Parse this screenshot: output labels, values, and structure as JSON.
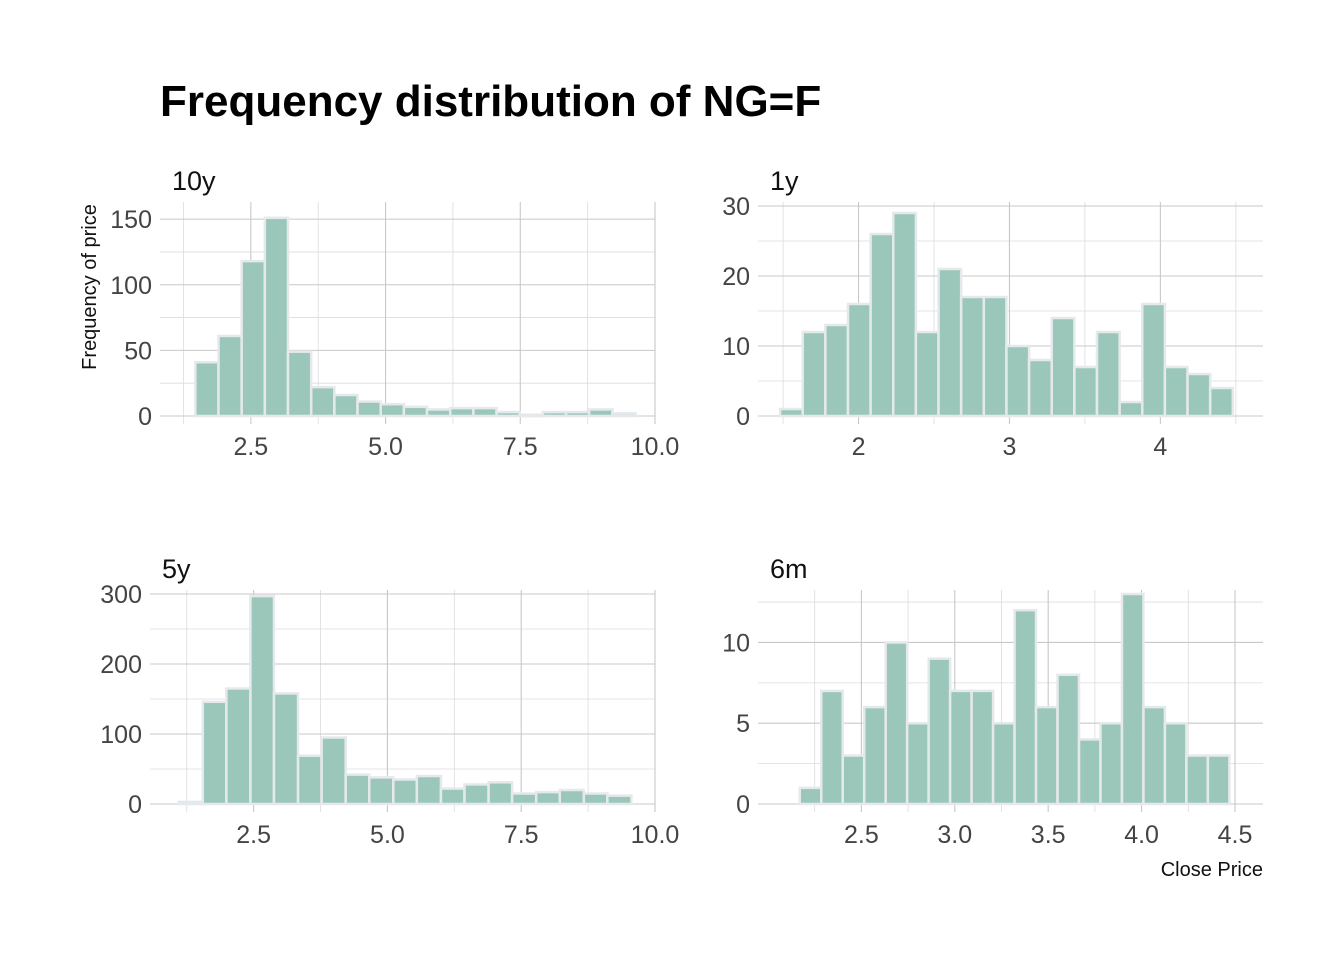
{
  "title": "Frequency distribution of NG=F",
  "ylabel": "Frequency of price",
  "xlabel": "Close Price",
  "colors": {
    "bar_fill": "#9ac7ba",
    "bar_edge": "#e6e9ec",
    "grid": "#c8c8c8"
  },
  "chart_data": [
    {
      "type": "bar",
      "panel": "10y",
      "bin_edges": [
        1.47,
        1.9,
        2.33,
        2.76,
        3.19,
        3.62,
        4.05,
        4.48,
        4.91,
        5.34,
        5.77,
        6.2,
        6.63,
        7.06,
        7.49,
        7.92,
        8.35,
        8.78,
        9.21,
        9.64
      ],
      "values": [
        41,
        61,
        118,
        151,
        49,
        22,
        16,
        11,
        9,
        7,
        5,
        6,
        6,
        3,
        1,
        3,
        3,
        5,
        2
      ],
      "xlim": [
        1.0,
        10.0
      ],
      "ylim": [
        0,
        160
      ],
      "xticks": [
        2.5,
        5.0,
        7.5,
        10.0
      ],
      "xtick_labels": [
        "2.5",
        "5.0",
        "7.5",
        "10.0"
      ],
      "yticks": [
        0,
        50,
        100,
        150
      ],
      "ytick_labels": [
        "0",
        "50",
        "100",
        "150"
      ],
      "grid": true
    },
    {
      "type": "bar",
      "panel": "1y",
      "bin_edges": [
        1.48,
        1.63,
        1.78,
        1.93,
        2.08,
        2.23,
        2.38,
        2.53,
        2.68,
        2.83,
        2.98,
        3.13,
        3.28,
        3.43,
        3.58,
        3.73,
        3.88,
        4.03,
        4.18,
        4.33,
        4.48
      ],
      "values": [
        1,
        12,
        13,
        16,
        26,
        29,
        12,
        21,
        17,
        17,
        10,
        8,
        14,
        7,
        12,
        2,
        16,
        7,
        6,
        4
      ],
      "xlim": [
        1.4,
        4.68
      ],
      "ylim": [
        0,
        30
      ],
      "xticks": [
        2,
        3,
        4
      ],
      "xtick_labels": [
        "2",
        "3",
        "4"
      ],
      "yticks": [
        0,
        10,
        20,
        30
      ],
      "ytick_labels": [
        "0",
        "10",
        "20",
        "30"
      ],
      "grid": true
    },
    {
      "type": "bar",
      "panel": "5y",
      "bin_edges": [
        1.1,
        1.55,
        1.99,
        2.44,
        2.88,
        3.33,
        3.77,
        4.22,
        4.66,
        5.11,
        5.55,
        6.0,
        6.44,
        6.89,
        7.33,
        7.78,
        8.22,
        8.67,
        9.11,
        9.56
      ],
      "values": [
        3,
        146,
        165,
        297,
        158,
        69,
        95,
        42,
        38,
        35,
        40,
        22,
        28,
        31,
        15,
        17,
        20,
        15,
        12
      ],
      "xlim": [
        0.75,
        10.0
      ],
      "ylim": [
        0,
        300
      ],
      "xticks": [
        2.5,
        5.0,
        7.5,
        10.0
      ],
      "xtick_labels": [
        "2.5",
        "5.0",
        "7.5",
        "10.0"
      ],
      "yticks": [
        0,
        100,
        200,
        300
      ],
      "ytick_labels": [
        "0",
        "100",
        "200",
        "300"
      ],
      "grid": true
    },
    {
      "type": "bar",
      "panel": "6m",
      "bin_edges": [
        2.17,
        2.285,
        2.4,
        2.515,
        2.63,
        2.745,
        2.86,
        2.975,
        3.09,
        3.205,
        3.32,
        3.435,
        3.55,
        3.665,
        3.78,
        3.895,
        4.01,
        4.125,
        4.24,
        4.355,
        4.47
      ],
      "values": [
        1,
        7,
        3,
        6,
        10,
        5,
        9,
        7,
        7,
        5,
        12,
        6,
        8,
        4,
        5,
        13,
        6,
        5,
        3,
        3
      ],
      "xlim": [
        2.0,
        4.65
      ],
      "ylim": [
        0,
        13
      ],
      "xticks": [
        2.5,
        3.0,
        3.5,
        4.0,
        4.5
      ],
      "xtick_labels": [
        "2.5",
        "3.0",
        "3.5",
        "4.0",
        "4.5"
      ],
      "yticks": [
        0,
        5,
        10
      ],
      "ytick_labels": [
        "0",
        "5",
        "10"
      ],
      "grid": true
    }
  ]
}
